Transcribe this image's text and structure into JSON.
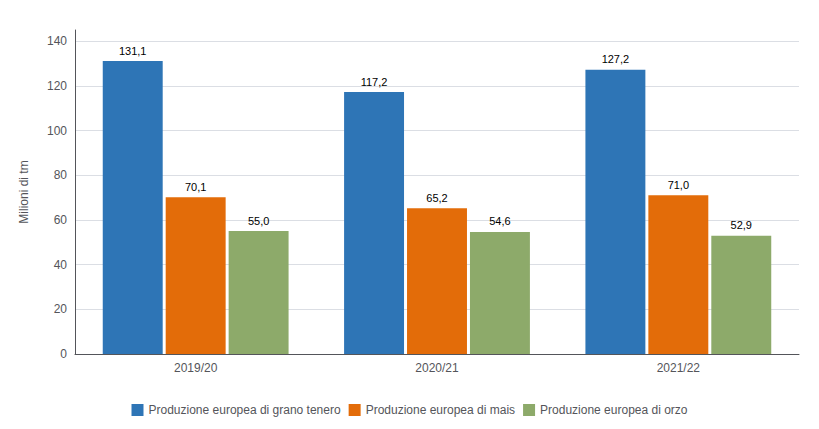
{
  "chart_data": {
    "type": "bar",
    "categories": [
      "2019/20",
      "2020/21",
      "2021/22"
    ],
    "series": [
      {
        "name": "Produzione europea di grano tenero",
        "color": "#2E75B6",
        "values": [
          131.1,
          117.2,
          127.2
        ],
        "value_labels": [
          "131,1",
          "117,2",
          "127,2"
        ]
      },
      {
        "name": "Produzione europea di mais",
        "color": "#E36C09",
        "values": [
          70.1,
          65.2,
          71.0
        ],
        "value_labels": [
          "70,1",
          "65,2",
          "71,0"
        ]
      },
      {
        "name": "Produzione europea di orzo",
        "color": "#8DAA6A",
        "values": [
          55.0,
          54.6,
          52.9
        ],
        "value_labels": [
          "55,0",
          "54,6",
          "52,9"
        ]
      }
    ],
    "ylabel": "Milioni di tm",
    "ylim": [
      0,
      145
    ],
    "yticks": [
      0,
      20,
      40,
      60,
      80,
      100,
      120,
      140
    ],
    "grid": true,
    "legend": "bottom",
    "data_labels": true
  }
}
